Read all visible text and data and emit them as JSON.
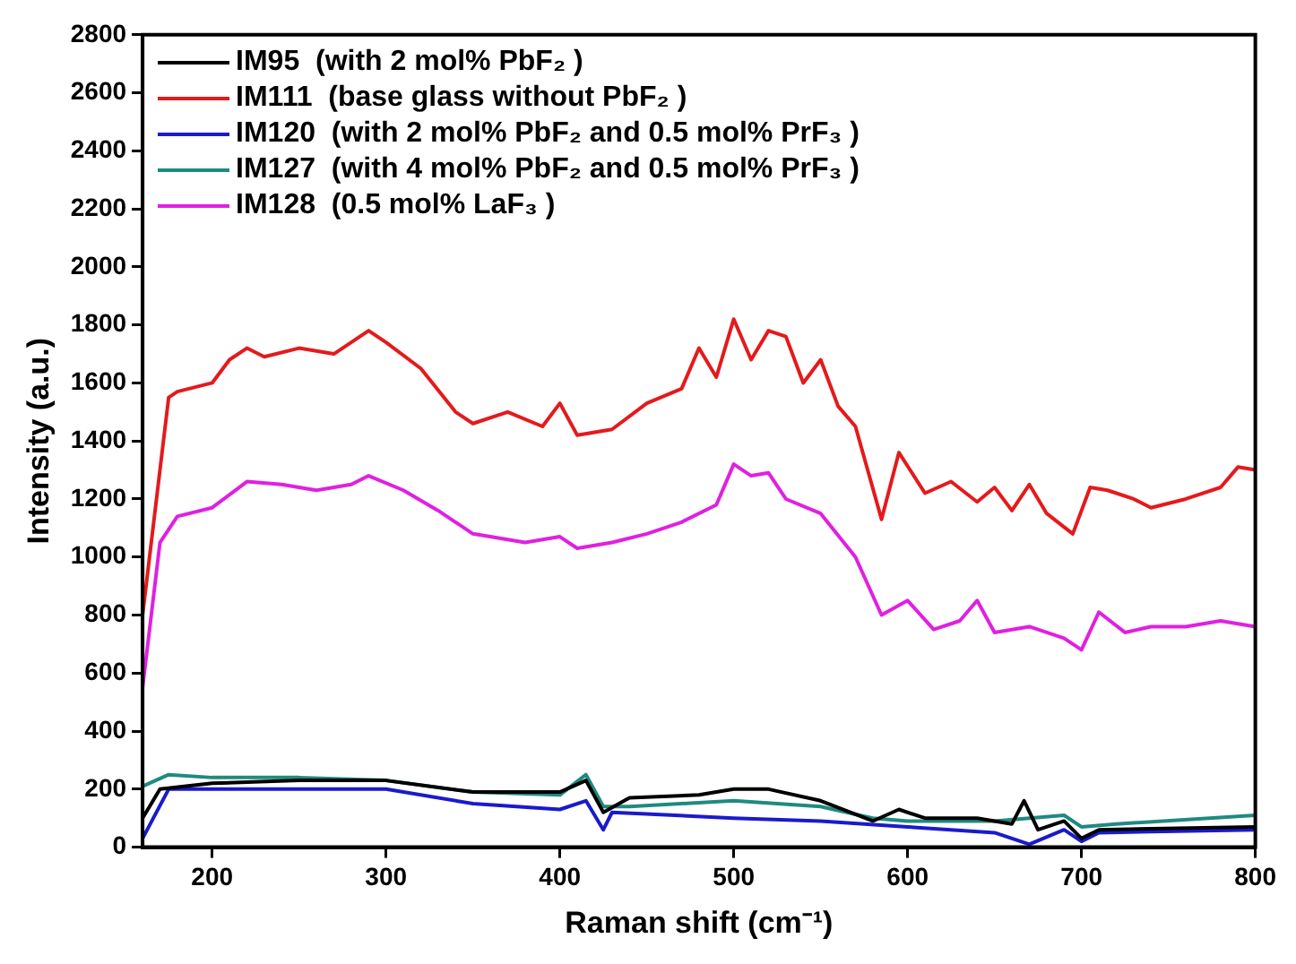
{
  "chart_data": {
    "type": "line",
    "xlabel": "Raman shift (cm⁻¹)",
    "ylabel": "Intensity (a.u.)",
    "xlim": [
      160,
      800
    ],
    "xticks": [
      200,
      300,
      400,
      500,
      600,
      700,
      800
    ],
    "ylim": [
      0,
      2800
    ],
    "yticks": [
      0,
      200,
      400,
      600,
      800,
      1000,
      1200,
      1400,
      1600,
      1800,
      2000,
      2200,
      2400,
      2600,
      2800
    ],
    "grid": false,
    "legend": "top left",
    "marker": "none",
    "line_style": "solid",
    "series": [
      {
        "name": "IM95  (with 2 mol% PbF₂ )",
        "color": "#000000",
        "x": [
          160,
          170,
          200,
          250,
          300,
          350,
          400,
          415,
          425,
          440,
          480,
          500,
          520,
          550,
          580,
          595,
          610,
          640,
          660,
          667,
          675,
          690,
          700,
          710,
          800
        ],
        "values": [
          100,
          200,
          220,
          230,
          230,
          190,
          190,
          230,
          120,
          170,
          180,
          200,
          200,
          160,
          90,
          130,
          100,
          100,
          80,
          160,
          60,
          90,
          30,
          60,
          70
        ]
      },
      {
        "name": "IM111  (base glass without PbF₂ )",
        "color": "#e41a1c",
        "x": [
          160,
          175,
          180,
          200,
          210,
          220,
          230,
          250,
          270,
          290,
          300,
          320,
          340,
          350,
          370,
          390,
          400,
          410,
          430,
          450,
          470,
          480,
          490,
          500,
          510,
          520,
          530,
          540,
          550,
          560,
          570,
          585,
          595,
          610,
          625,
          640,
          650,
          660,
          670,
          680,
          695,
          705,
          715,
          730,
          740,
          760,
          780,
          790,
          800
        ],
        "values": [
          800,
          1550,
          1570,
          1600,
          1680,
          1720,
          1690,
          1720,
          1700,
          1780,
          1740,
          1650,
          1500,
          1460,
          1500,
          1450,
          1530,
          1420,
          1440,
          1530,
          1580,
          1720,
          1620,
          1820,
          1680,
          1780,
          1760,
          1600,
          1680,
          1520,
          1450,
          1130,
          1360,
          1220,
          1260,
          1190,
          1240,
          1160,
          1250,
          1150,
          1080,
          1240,
          1230,
          1200,
          1170,
          1200,
          1240,
          1310,
          1300
        ]
      },
      {
        "name": "IM120  (with 2 mol% PbF₂ and 0.5 mol% PrF₃ )",
        "color": "#1a1acc",
        "x": [
          160,
          175,
          200,
          250,
          300,
          350,
          400,
          415,
          425,
          430,
          500,
          550,
          600,
          650,
          670,
          690,
          700,
          710,
          800
        ],
        "values": [
          30,
          200,
          200,
          200,
          200,
          150,
          130,
          160,
          60,
          120,
          100,
          90,
          70,
          50,
          10,
          60,
          20,
          50,
          60
        ]
      },
      {
        "name": "IM127  (with 4 mol% PbF₂ and 0.5 mol% PrF₃ )",
        "color": "#1f8a80",
        "x": [
          160,
          175,
          200,
          250,
          300,
          350,
          400,
          415,
          425,
          440,
          500,
          550,
          580,
          600,
          650,
          690,
          700,
          720,
          800
        ],
        "values": [
          210,
          250,
          240,
          240,
          230,
          190,
          180,
          250,
          140,
          140,
          160,
          140,
          100,
          90,
          90,
          110,
          70,
          80,
          110
        ]
      },
      {
        "name": "IM128  (0.5 mol% LaF₃ )",
        "color": "#e020e0",
        "x": [
          160,
          170,
          180,
          200,
          220,
          240,
          260,
          280,
          290,
          310,
          330,
          350,
          380,
          400,
          410,
          430,
          450,
          470,
          490,
          500,
          510,
          520,
          530,
          550,
          570,
          585,
          600,
          615,
          630,
          640,
          650,
          670,
          690,
          700,
          710,
          725,
          740,
          760,
          780,
          800
        ],
        "values": [
          550,
          1050,
          1140,
          1170,
          1260,
          1250,
          1230,
          1250,
          1280,
          1230,
          1160,
          1080,
          1050,
          1070,
          1030,
          1050,
          1080,
          1120,
          1180,
          1320,
          1280,
          1290,
          1200,
          1150,
          1000,
          800,
          850,
          750,
          780,
          850,
          740,
          760,
          720,
          680,
          810,
          740,
          760,
          760,
          780,
          760
        ]
      }
    ]
  }
}
